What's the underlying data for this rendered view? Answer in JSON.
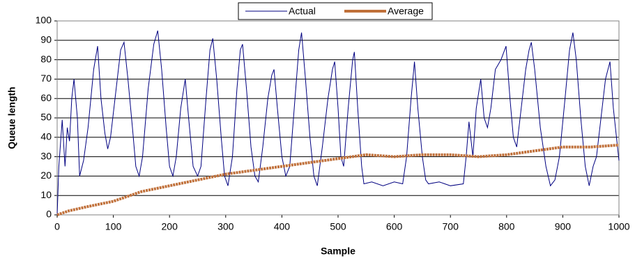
{
  "chart_data": {
    "type": "line",
    "xlabel": "Sample",
    "ylabel": "Queue length",
    "xlim": [
      0,
      1000
    ],
    "xticks": [
      0,
      100,
      200,
      300,
      400,
      500,
      600,
      700,
      800,
      900,
      1000
    ],
    "ylim": [
      0,
      100
    ],
    "yticks": [
      0,
      10,
      20,
      30,
      40,
      50,
      60,
      70,
      80,
      90,
      100
    ],
    "grid": true,
    "legend": "top",
    "series": [
      {
        "name": "Actual",
        "color": "#000080",
        "x": [
          0,
          3,
          9,
          14,
          18,
          22,
          26,
          30,
          36,
          40,
          47,
          55,
          65,
          72,
          78,
          85,
          90,
          95,
          105,
          113,
          119,
          126,
          134,
          140,
          146,
          152,
          162,
          172,
          179,
          186,
          194,
          200,
          206,
          212,
          220,
          228,
          234,
          242,
          250,
          256,
          265,
          272,
          277,
          284,
          292,
          298,
          304,
          312,
          320,
          326,
          330,
          337,
          345,
          352,
          358,
          366,
          375,
          382,
          386,
          392,
          400,
          407,
          414,
          422,
          430,
          435,
          442,
          450,
          457,
          463,
          472,
          482,
          490,
          494,
          500,
          505,
          510,
          518,
          526,
          529,
          535,
          542,
          546,
          560,
          580,
          600,
          615,
          622,
          630,
          636,
          642,
          650,
          656,
          661,
          680,
          700,
          723,
          728,
          733,
          740,
          746,
          754,
          760,
          766,
          772,
          780,
          790,
          799,
          806,
          812,
          818,
          824,
          834,
          840,
          844,
          850,
          860,
          870,
          878,
          886,
          894,
          904,
          912,
          918,
          924,
          932,
          940,
          947,
          954,
          960,
          968,
          976,
          984,
          990,
          1000
        ],
        "values": [
          0,
          25,
          49,
          25,
          45,
          38,
          60,
          70,
          50,
          20,
          28,
          45,
          75,
          87,
          60,
          42,
          34,
          40,
          65,
          85,
          89,
          70,
          45,
          25,
          20,
          30,
          65,
          88,
          95,
          75,
          45,
          25,
          20,
          30,
          55,
          70,
          50,
          25,
          20,
          25,
          60,
          85,
          91,
          70,
          40,
          20,
          15,
          30,
          65,
          85,
          88,
          65,
          35,
          20,
          17,
          35,
          60,
          72,
          75,
          55,
          30,
          20,
          25,
          55,
          85,
          94,
          70,
          40,
          20,
          15,
          35,
          60,
          75,
          79,
          55,
          30,
          25,
          55,
          80,
          84,
          55,
          25,
          16,
          17,
          15,
          17,
          16,
          30,
          60,
          79,
          55,
          30,
          18,
          16,
          17,
          15,
          16,
          30,
          48,
          30,
          55,
          70,
          50,
          45,
          55,
          75,
          80,
          87,
          60,
          40,
          35,
          50,
          75,
          85,
          89,
          75,
          45,
          25,
          15,
          18,
          30,
          60,
          85,
          94,
          80,
          50,
          25,
          15,
          25,
          30,
          50,
          70,
          79,
          55,
          28
        ]
      },
      {
        "name": "Average",
        "color": "#c0703a",
        "x": [
          0,
          20,
          50,
          100,
          150,
          200,
          250,
          300,
          350,
          400,
          450,
          500,
          550,
          600,
          650,
          700,
          750,
          800,
          850,
          900,
          950,
          1000
        ],
        "values": [
          0,
          2,
          4,
          7,
          12,
          15,
          18,
          21,
          23,
          25,
          27,
          29,
          31,
          30,
          31,
          31,
          30,
          31,
          33,
          35,
          35,
          36
        ]
      }
    ]
  }
}
